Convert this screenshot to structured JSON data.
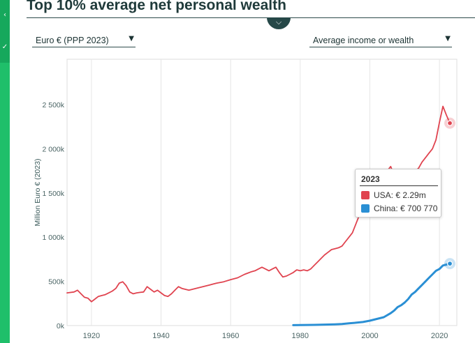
{
  "title": "Top 10% average net personal wealth",
  "controls": {
    "currency_value": "Euro € (PPP 2023)",
    "measure_value": "Average income or wealth"
  },
  "tooltip": {
    "year": "2023",
    "rows": [
      {
        "label": "USA: € 2.29m",
        "color": "#e0434f"
      },
      {
        "label": "China: € 700 770",
        "color": "#2a8fd4"
      }
    ]
  },
  "colors": {
    "usa": "#e0434f",
    "china": "#2a8fd4",
    "sidebar": "#1fbf6a",
    "header": "#264848"
  },
  "icons": {
    "collapse": "chevron-down-icon",
    "side_top": "share-icon",
    "side_mid": "check-icon"
  },
  "chart_data": {
    "type": "line",
    "title": "Top 10% average net personal wealth",
    "xlabel": "",
    "ylabel": "Million Euro € (2023)",
    "xlim": [
      1913,
      2025
    ],
    "ylim": [
      0,
      2500000
    ],
    "x_ticks": [
      1920,
      1940,
      1960,
      1980,
      2000,
      2020
    ],
    "x_tick_labels": [
      "1920",
      "1940",
      "1960",
      "1980",
      "2000",
      "2020"
    ],
    "y_ticks": [
      0,
      500000,
      1000000,
      1500000,
      2000000,
      2500000
    ],
    "y_tick_labels": [
      "0k",
      "500k",
      "1 000k",
      "1 500k",
      "2 000k",
      "2 500k"
    ],
    "grid": "vertical",
    "series": [
      {
        "name": "USA",
        "color": "#e0434f",
        "x": [
          1913,
          1915,
          1916,
          1917,
          1918,
          1919,
          1920,
          1921,
          1922,
          1923,
          1924,
          1925,
          1926,
          1927,
          1928,
          1929,
          1930,
          1931,
          1932,
          1933,
          1934,
          1935,
          1936,
          1937,
          1938,
          1939,
          1940,
          1941,
          1942,
          1943,
          1944,
          1945,
          1946,
          1947,
          1948,
          1949,
          1950,
          1952,
          1954,
          1955,
          1956,
          1958,
          1960,
          1962,
          1963,
          1964,
          1965,
          1966,
          1967,
          1968,
          1969,
          1970,
          1971,
          1972,
          1973,
          1974,
          1975,
          1976,
          1977,
          1978,
          1979,
          1980,
          1981,
          1982,
          1983,
          1984,
          1985,
          1986,
          1987,
          1988,
          1989,
          1990,
          1991,
          1992,
          1993,
          1994,
          1995,
          1996,
          1997,
          1998,
          1999,
          2000,
          2001,
          2002,
          2003,
          2004,
          2005,
          2006,
          2007,
          2008,
          2009,
          2010,
          2011,
          2012,
          2013,
          2014,
          2015,
          2016,
          2017,
          2018,
          2019,
          2020,
          2021,
          2022,
          2023
        ],
        "values": [
          370000,
          380000,
          400000,
          360000,
          320000,
          310000,
          270000,
          300000,
          330000,
          340000,
          350000,
          370000,
          390000,
          420000,
          480000,
          495000,
          450000,
          380000,
          360000,
          370000,
          375000,
          380000,
          440000,
          410000,
          380000,
          400000,
          370000,
          340000,
          330000,
          360000,
          400000,
          440000,
          420000,
          410000,
          400000,
          410000,
          420000,
          440000,
          460000,
          470000,
          480000,
          495000,
          520000,
          540000,
          560000,
          580000,
          595000,
          610000,
          620000,
          640000,
          660000,
          640000,
          620000,
          640000,
          660000,
          600000,
          550000,
          560000,
          580000,
          600000,
          630000,
          620000,
          630000,
          620000,
          640000,
          680000,
          720000,
          760000,
          800000,
          830000,
          860000,
          870000,
          880000,
          900000,
          950000,
          1000000,
          1050000,
          1150000,
          1250000,
          1350000,
          1450000,
          1550000,
          1500000,
          1450000,
          1550000,
          1650000,
          1750000,
          1800000,
          1700000,
          1550000,
          1550000,
          1600000,
          1650000,
          1700000,
          1750000,
          1780000,
          1850000,
          1900000,
          1950000,
          2000000,
          2100000,
          2300000,
          2480000,
          2380000,
          2290000
        ]
      },
      {
        "name": "China",
        "color": "#2a8fd4",
        "x": [
          1978,
          1980,
          1982,
          1984,
          1986,
          1988,
          1990,
          1992,
          1994,
          1996,
          1998,
          2000,
          2002,
          2004,
          2006,
          2007,
          2008,
          2009,
          2010,
          2011,
          2012,
          2013,
          2014,
          2015,
          2016,
          2017,
          2018,
          2019,
          2020,
          2021,
          2022,
          2023
        ],
        "values": [
          5000,
          6000,
          7000,
          8000,
          10000,
          12000,
          14000,
          18000,
          25000,
          32000,
          40000,
          55000,
          75000,
          95000,
          140000,
          170000,
          210000,
          230000,
          260000,
          300000,
          350000,
          380000,
          420000,
          460000,
          500000,
          540000,
          580000,
          620000,
          640000,
          680000,
          690000,
          700770
        ]
      }
    ],
    "tooltip_year": 2023
  }
}
